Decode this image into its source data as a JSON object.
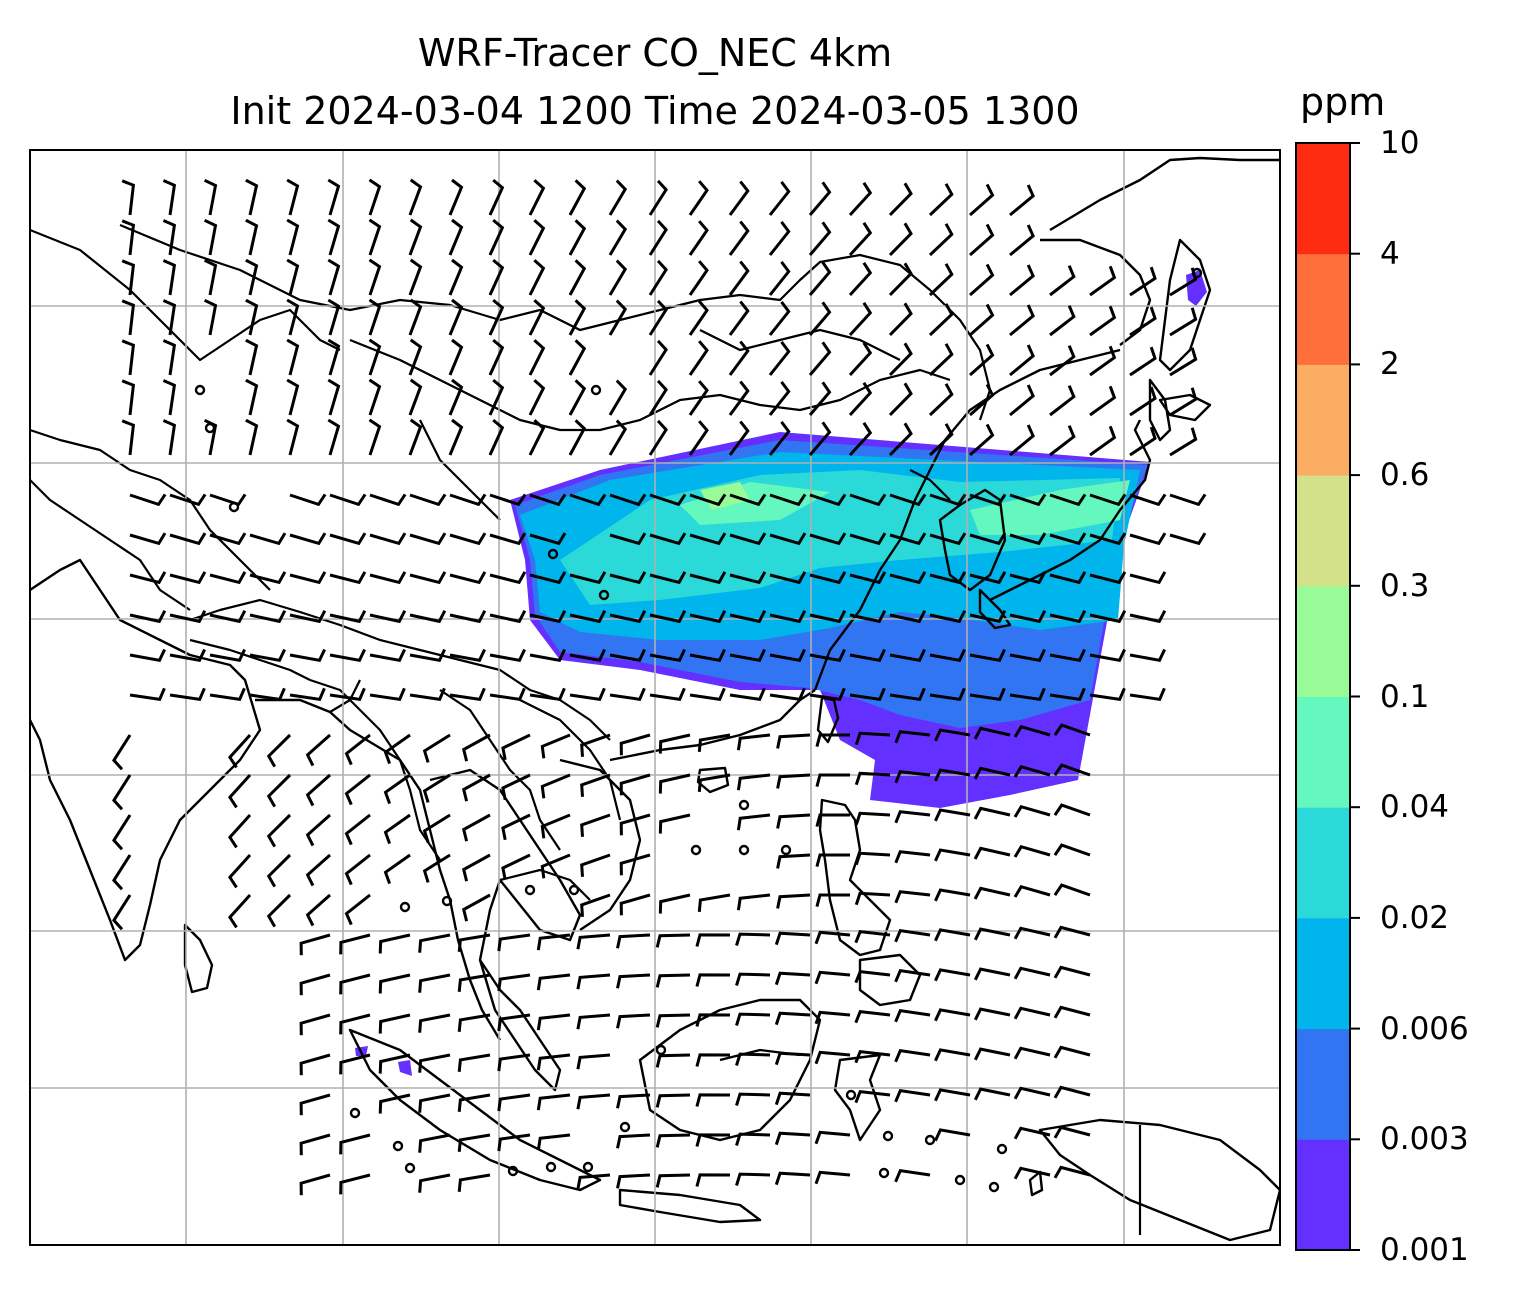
{
  "title": {
    "line1": "WRF-Tracer CO_NEC 4km",
    "line2": "Init 2024-03-04 1200 Time 2024-03-05 1300"
  },
  "colorbar": {
    "unit": "ppm",
    "tick_labels": [
      "0.001",
      "0.003",
      "0.006",
      "0.02",
      "0.04",
      "0.1",
      "0.3",
      "0.6",
      "2",
      "4",
      "10"
    ],
    "colors": [
      "#6430ff",
      "#3275f3",
      "#00b4ec",
      "#2ad9d8",
      "#64f7be",
      "#98fb98",
      "#d2e18a",
      "#fbad63",
      "#ff6f3c",
      "#ff2c14"
    ]
  },
  "map": {
    "variable": "CO_NEC tracer",
    "units": "ppm",
    "layers": [
      "coastlines",
      "country-borders",
      "gridlines",
      "filled-concentration",
      "wind-barbs"
    ],
    "wind_barbs": "calm-circles-and-barbs"
  }
}
